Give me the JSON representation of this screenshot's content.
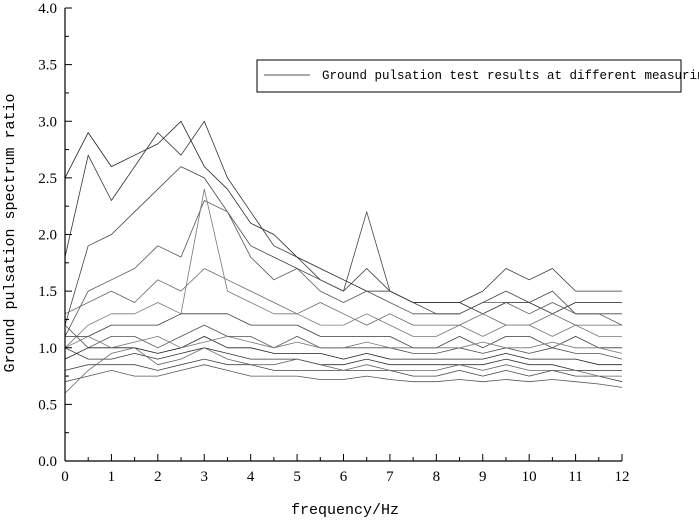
{
  "chart_data": {
    "type": "line",
    "title": "",
    "xlabel": "frequency/Hz",
    "ylabel": "Ground pulsation spectrum ratio",
    "xlim": [
      0,
      12
    ],
    "ylim": [
      0.0,
      4.0
    ],
    "x_ticks": [
      "0",
      "1",
      "2",
      "3",
      "4",
      "5",
      "6",
      "7",
      "8",
      "9",
      "10",
      "11",
      "12"
    ],
    "y_ticks": [
      "0.0",
      "0.5",
      "1.0",
      "1.5",
      "2.0",
      "2.5",
      "3.0",
      "3.5",
      "4.0"
    ],
    "grid": false,
    "legend": {
      "position": "top-right",
      "entries": [
        "Ground pulsation test results at different measuring points"
      ]
    },
    "series_color": "#555555",
    "x": [
      0,
      0.5,
      1,
      1.5,
      2,
      2.5,
      3,
      3.5,
      4,
      4.5,
      5,
      5.5,
      6,
      6.5,
      7,
      7.5,
      8,
      8.5,
      9,
      9.5,
      10,
      10.5,
      11,
      11.5,
      12
    ],
    "series": [
      {
        "values": [
          2.5,
          2.9,
          2.6,
          2.7,
          2.8,
          3.0,
          2.6,
          2.4,
          2.1,
          2.0,
          1.8,
          1.7,
          1.6,
          1.5,
          1.5,
          1.4,
          1.4,
          1.4,
          1.3,
          1.4,
          1.4,
          1.3,
          1.4,
          1.4,
          1.4
        ]
      },
      {
        "values": [
          1.8,
          2.7,
          2.3,
          2.6,
          2.9,
          2.7,
          3.0,
          2.5,
          2.2,
          1.9,
          1.8,
          1.6,
          1.5,
          1.7,
          1.5,
          1.4,
          1.4,
          1.4,
          1.5,
          1.7,
          1.6,
          1.7,
          1.5,
          1.5,
          1.5
        ]
      },
      {
        "values": [
          1.2,
          1.9,
          2.0,
          2.2,
          2.4,
          2.6,
          2.5,
          2.2,
          1.9,
          1.8,
          1.7,
          1.6,
          1.5,
          2.2,
          1.5,
          1.4,
          1.3,
          1.3,
          1.4,
          1.5,
          1.4,
          1.5,
          1.3,
          1.3,
          1.3
        ]
      },
      {
        "values": [
          1.1,
          1.5,
          1.6,
          1.7,
          1.9,
          1.8,
          2.3,
          2.2,
          1.8,
          1.6,
          1.7,
          1.5,
          1.4,
          1.5,
          1.4,
          1.3,
          1.3,
          1.3,
          1.4,
          1.4,
          1.3,
          1.4,
          1.3,
          1.3,
          1.2
        ]
      },
      {
        "values": [
          1.3,
          1.4,
          1.5,
          1.4,
          1.6,
          1.5,
          1.7,
          1.6,
          1.5,
          1.4,
          1.3,
          1.4,
          1.3,
          1.2,
          1.3,
          1.2,
          1.2,
          1.2,
          1.3,
          1.2,
          1.2,
          1.3,
          1.2,
          1.2,
          1.2
        ]
      },
      {
        "values": [
          1.0,
          1.2,
          1.3,
          1.3,
          1.4,
          1.3,
          2.4,
          1.5,
          1.4,
          1.3,
          1.3,
          1.2,
          1.2,
          1.3,
          1.2,
          1.1,
          1.1,
          1.2,
          1.1,
          1.2,
          1.2,
          1.1,
          1.2,
          1.1,
          1.1
        ]
      },
      {
        "values": [
          1.1,
          1.1,
          1.2,
          1.2,
          1.2,
          1.3,
          1.3,
          1.3,
          1.2,
          1.2,
          1.2,
          1.1,
          1.1,
          1.1,
          1.1,
          1.0,
          1.0,
          1.1,
          1.0,
          1.1,
          1.1,
          1.0,
          1.1,
          1.0,
          1.0
        ]
      },
      {
        "values": [
          1.2,
          1.0,
          1.1,
          1.1,
          1.0,
          1.1,
          1.2,
          1.1,
          1.1,
          1.0,
          1.1,
          1.0,
          1.0,
          1.0,
          1.0,
          0.95,
          0.95,
          1.0,
          0.95,
          1.0,
          0.95,
          1.0,
          0.95,
          0.95,
          0.9
        ]
      },
      {
        "values": [
          0.9,
          1.0,
          1.0,
          1.0,
          0.95,
          1.0,
          1.1,
          1.0,
          1.0,
          0.95,
          0.95,
          0.95,
          0.9,
          0.95,
          0.9,
          0.9,
          0.9,
          0.9,
          0.9,
          0.95,
          0.9,
          0.9,
          0.9,
          0.85,
          0.85
        ]
      },
      {
        "values": [
          1.0,
          0.9,
          0.9,
          0.95,
          0.9,
          0.95,
          1.0,
          0.95,
          0.9,
          0.9,
          0.9,
          0.85,
          0.85,
          0.9,
          0.85,
          0.85,
          0.85,
          0.85,
          0.85,
          0.9,
          0.85,
          0.85,
          0.8,
          0.8,
          0.8
        ]
      },
      {
        "values": [
          0.8,
          0.85,
          0.85,
          0.85,
          0.8,
          0.85,
          0.9,
          0.85,
          0.85,
          0.8,
          0.8,
          0.8,
          0.8,
          0.8,
          0.8,
          0.75,
          0.75,
          0.8,
          0.75,
          0.8,
          0.75,
          0.8,
          0.75,
          0.75,
          0.7
        ]
      },
      {
        "values": [
          0.7,
          0.75,
          0.8,
          0.75,
          0.75,
          0.8,
          0.85,
          0.8,
          0.75,
          0.75,
          0.75,
          0.72,
          0.72,
          0.75,
          0.72,
          0.7,
          0.7,
          0.72,
          0.7,
          0.72,
          0.7,
          0.72,
          0.7,
          0.68,
          0.65
        ]
      },
      {
        "values": [
          0.6,
          0.8,
          0.95,
          1.0,
          0.85,
          0.9,
          1.0,
          0.9,
          0.85,
          0.85,
          0.9,
          0.85,
          0.8,
          0.85,
          0.8,
          0.8,
          0.8,
          0.85,
          0.8,
          0.85,
          0.8,
          0.8,
          0.8,
          0.75,
          0.75
        ]
      },
      {
        "values": [
          1.0,
          1.1,
          1.0,
          1.05,
          1.1,
          1.0,
          1.05,
          1.1,
          1.05,
          1.0,
          1.05,
          1.0,
          1.0,
          1.05,
          1.0,
          1.0,
          1.0,
          1.0,
          1.05,
          1.0,
          1.0,
          1.05,
          1.0,
          1.0,
          0.95
        ]
      }
    ]
  }
}
